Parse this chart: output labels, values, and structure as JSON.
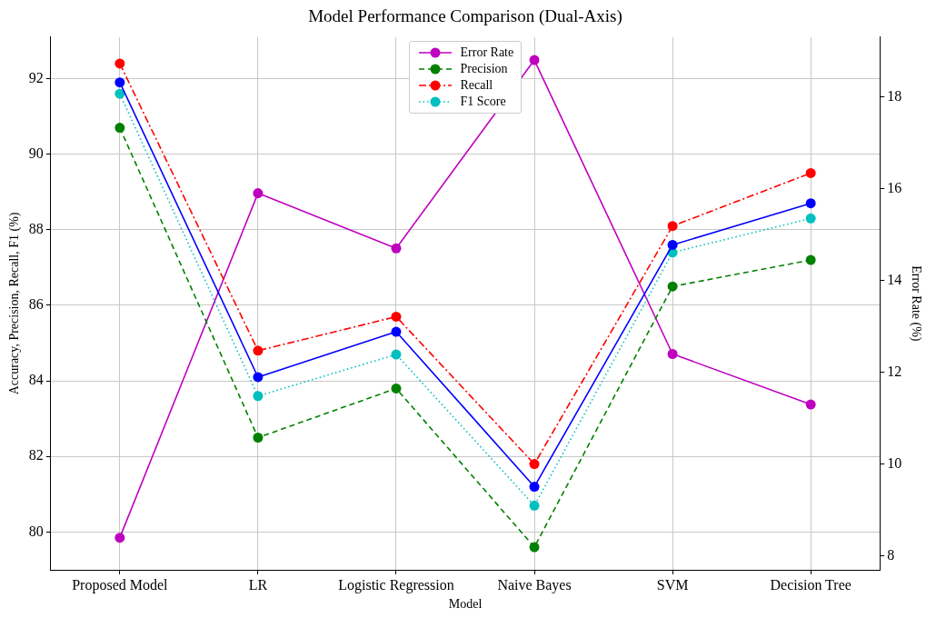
{
  "chart_data": {
    "type": "line",
    "title": "Model Performance Comparison (Dual-Axis)",
    "xlabel": "Model",
    "ylabel": "Accuracy, Precision, Recall, F1 (%)",
    "y2label": "Error Rate (%)",
    "categories": [
      "Proposed Model",
      "LR",
      "Logistic Regression",
      "Naive Bayes",
      "SVM",
      "Decision Tree"
    ],
    "series": [
      {
        "color": "#0000ff",
        "line_style": "solid",
        "values": [
          91.9,
          84.1,
          85.3,
          81.2,
          87.6,
          88.7
        ]
      },
      {
        "name": "Precision",
        "color": "#008000",
        "line_style": "dashed",
        "values": [
          90.7,
          82.5,
          83.8,
          79.6,
          86.5,
          87.2
        ]
      },
      {
        "name": "Recall",
        "color": "#ff0000",
        "line_style": "dashdot",
        "values": [
          92.4,
          84.8,
          85.7,
          81.8,
          88.1,
          89.5
        ]
      },
      {
        "name": "F1 Score",
        "color": "#00bfbf",
        "line_style": "dotted",
        "values": [
          91.6,
          83.6,
          84.7,
          80.7,
          87.4,
          88.3
        ]
      },
      {
        "name": "Error Rate",
        "color": "#bf00bf",
        "line_style": "solid",
        "axis": "y2",
        "values": [
          8.4,
          15.9,
          14.7,
          18.8,
          12.4,
          11.3
        ]
      }
    ],
    "ylim": [
      79,
      93.1
    ],
    "yticks": [
      80,
      82,
      84,
      86,
      88,
      90,
      92
    ],
    "y2lim": [
      7.7,
      19.3
    ],
    "y2ticks": [
      8,
      10,
      12,
      14,
      16,
      18
    ],
    "grid": true,
    "legend": "top",
    "marker": "circle"
  }
}
